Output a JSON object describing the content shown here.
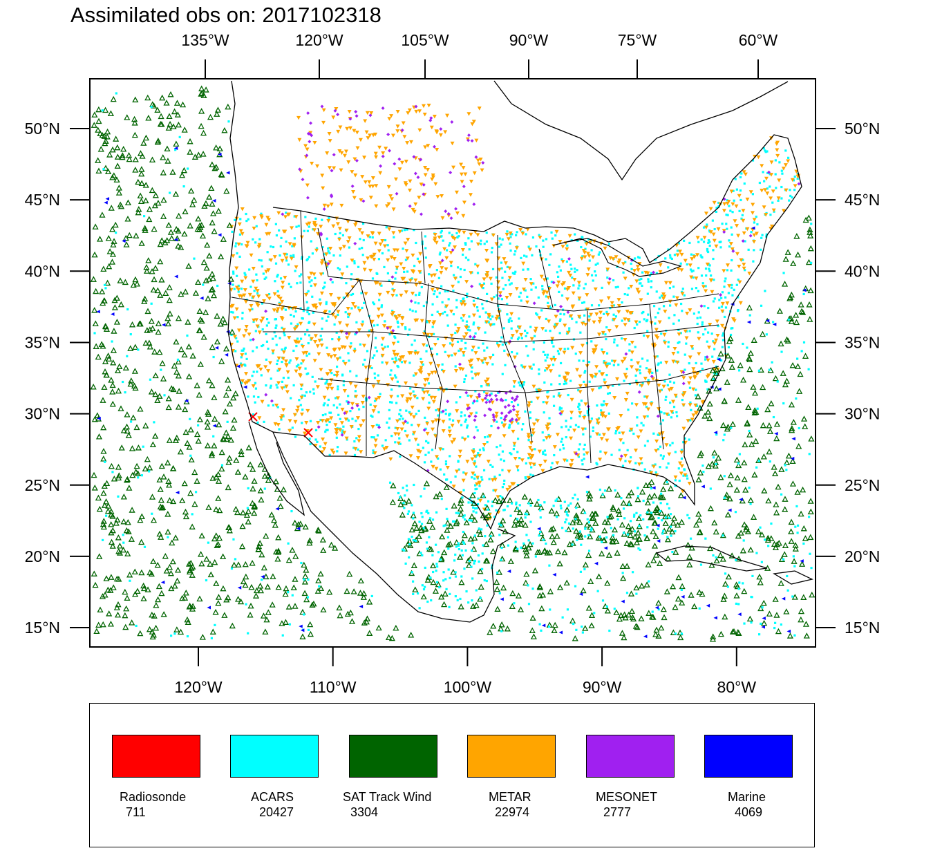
{
  "title": "Assimilated obs on: 2017102318",
  "map": {
    "top_axis_labels": [
      "135°W",
      "120°W",
      "105°W",
      "90°W",
      "75°W",
      "60°W"
    ],
    "bottom_axis_labels": [
      "120°W",
      "110°W",
      "100°W",
      "90°W",
      "80°W"
    ],
    "lat_labels": [
      "50°N",
      "45°N",
      "40°N",
      "35°N",
      "30°N",
      "25°N",
      "20°N",
      "15°N"
    ],
    "lat_values": [
      50,
      45,
      40,
      35,
      30,
      25,
      20,
      15
    ],
    "bottom_lon_values": [
      -120,
      -110,
      -100,
      -90,
      -80
    ],
    "region": "Continental United States and surrounding oceans"
  },
  "legend": [
    {
      "name": "Radiosonde",
      "count": "711",
      "color": "#ff0000",
      "marker": "x"
    },
    {
      "name": "ACARS",
      "count": "20427",
      "color": "#00ffff",
      "marker": "square"
    },
    {
      "name": "SAT Track Wind",
      "count": "3304",
      "color": "#006400",
      "marker": "triangle-up"
    },
    {
      "name": "METAR",
      "count": "22974",
      "color": "#ffa500",
      "marker": "triangle-down"
    },
    {
      "name": "MESONET",
      "count": "2777",
      "color": "#a020f0",
      "marker": "diamond"
    },
    {
      "name": "Marine",
      "count": "4069",
      "color": "#0000ff",
      "marker": "triangle-left"
    }
  ]
}
